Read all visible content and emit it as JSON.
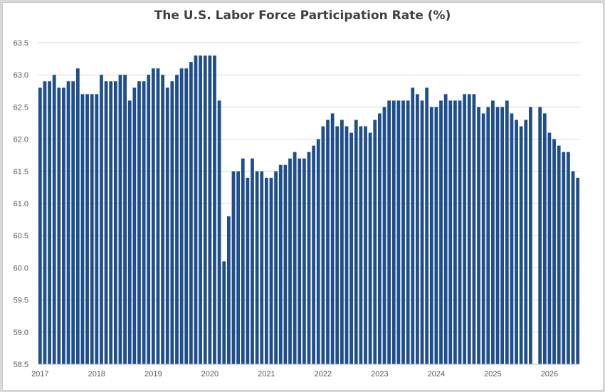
{
  "chart_data": {
    "type": "bar",
    "title": "The U.S. Labor Force Participation Rate (%)",
    "xlabel": "",
    "ylabel": "",
    "ylim": [
      58.5,
      63.5
    ],
    "grid": true,
    "legend": "none",
    "bar_color": "#1f4e8c",
    "yticks": [
      "63.5",
      "63.0",
      "62.5",
      "62.0",
      "61.5",
      "61.0",
      "60.5",
      "60.0",
      "59.5",
      "59.0",
      "58.5"
    ],
    "xticks": [
      "2017",
      "2018",
      "2019",
      "2020",
      "2021",
      "2022",
      "2023",
      "2024",
      "2025",
      "2026"
    ],
    "categories": [
      "2017-01",
      "2017-02",
      "2017-03",
      "2017-04",
      "2017-05",
      "2017-06",
      "2017-07",
      "2017-08",
      "2017-09",
      "2017-10",
      "2017-11",
      "2017-12",
      "2018-01",
      "2018-02",
      "2018-03",
      "2018-04",
      "2018-05",
      "2018-06",
      "2018-07",
      "2018-08",
      "2018-09",
      "2018-10",
      "2018-11",
      "2018-12",
      "2019-01",
      "2019-02",
      "2019-03",
      "2019-04",
      "2019-05",
      "2019-06",
      "2019-07",
      "2019-08",
      "2019-09",
      "2019-10",
      "2019-11",
      "2019-12",
      "2020-01",
      "2020-02",
      "2020-03",
      "2020-04",
      "2020-05",
      "2020-06",
      "2020-07",
      "2020-08",
      "2020-09",
      "2020-10",
      "2020-11",
      "2020-12",
      "2021-01",
      "2021-02",
      "2021-03",
      "2021-04",
      "2021-05",
      "2021-06",
      "2021-07",
      "2021-08",
      "2021-09",
      "2021-10",
      "2021-11",
      "2021-12",
      "2022-01",
      "2022-02",
      "2022-03",
      "2022-04",
      "2022-05",
      "2022-06",
      "2022-07",
      "2022-08",
      "2022-09",
      "2022-10",
      "2022-11",
      "2022-12",
      "2023-01",
      "2023-02",
      "2023-03",
      "2023-04",
      "2023-05",
      "2023-06",
      "2023-07",
      "2023-08",
      "2023-09",
      "2023-10",
      "2023-11",
      "2023-12",
      "2024-01",
      "2024-02",
      "2024-03",
      "2024-04",
      "2024-05",
      "2024-06",
      "2024-07",
      "2024-08",
      "2024-09",
      "2024-10",
      "2024-11",
      "2024-12",
      "2025-01",
      "2025-02",
      "2025-03",
      "2025-04",
      "2025-05",
      "2025-06",
      "2025-07",
      "2025-08",
      "2025-09",
      "2025-10",
      "2025-11",
      "2025-12",
      "2026-01",
      "2026-02",
      "2026-03",
      "2026-04",
      "2026-05",
      "2026-06",
      "2026-07"
    ],
    "values": [
      62.8,
      62.9,
      62.9,
      63.0,
      62.8,
      62.8,
      62.9,
      62.9,
      63.1,
      62.7,
      62.7,
      62.7,
      62.7,
      63.0,
      62.9,
      62.9,
      62.9,
      63.0,
      63.0,
      62.6,
      62.8,
      62.9,
      62.9,
      63.0,
      63.1,
      63.1,
      63.0,
      62.8,
      62.9,
      63.0,
      63.1,
      63.1,
      63.2,
      63.3,
      63.3,
      63.3,
      63.3,
      63.3,
      62.6,
      60.1,
      60.8,
      61.5,
      61.5,
      61.7,
      61.4,
      61.7,
      61.5,
      61.5,
      61.4,
      61.4,
      61.5,
      61.6,
      61.6,
      61.7,
      61.8,
      61.7,
      61.7,
      61.8,
      61.9,
      62.0,
      62.2,
      62.3,
      62.4,
      62.2,
      62.3,
      62.2,
      62.1,
      62.3,
      62.2,
      62.2,
      62.1,
      62.3,
      62.4,
      62.5,
      62.6,
      62.6,
      62.6,
      62.6,
      62.6,
      62.8,
      62.7,
      62.6,
      62.8,
      62.5,
      62.5,
      62.6,
      62.7,
      62.6,
      62.6,
      62.6,
      62.7,
      62.7,
      62.7,
      62.5,
      62.4,
      62.5,
      62.6,
      62.5,
      62.5,
      62.6,
      62.4,
      62.3,
      62.2,
      62.3,
      62.5,
      null,
      62.5,
      62.4,
      62.1,
      62.0,
      61.9,
      61.8,
      61.8,
      61.5,
      61.4
    ]
  }
}
